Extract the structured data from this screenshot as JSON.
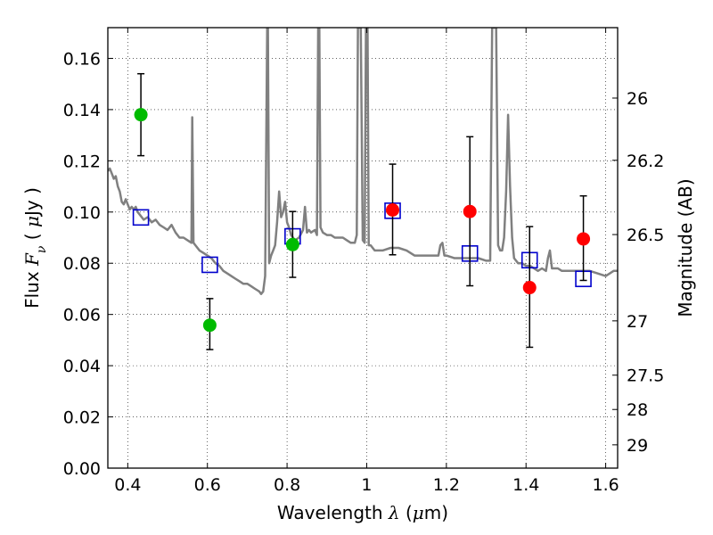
{
  "chart_data": {
    "type": "scatter",
    "title": "",
    "xlabel_parts": [
      "Wavelength  ",
      "λ",
      " (",
      "μ",
      "m)"
    ],
    "ylabel_parts": [
      "Flux  ",
      "F",
      "ν",
      "  ( ",
      "μ",
      "Jy )"
    ],
    "y2label": "Magnitude (AB)",
    "xlim": [
      0.35,
      1.63
    ],
    "ylim": [
      0.0,
      0.172
    ],
    "grid": true,
    "x_ticks": [
      0.4,
      0.6,
      0.8,
      1.0,
      1.2,
      1.4,
      1.6
    ],
    "x_tick_labels": [
      "0.4",
      "0.6",
      "0.8",
      "1",
      "1.2",
      "1.4",
      "1.6"
    ],
    "y_ticks": [
      0.0,
      0.02,
      0.04,
      0.06,
      0.08,
      0.1,
      0.12,
      0.14,
      0.16
    ],
    "y_tick_labels": [
      "0.00",
      "0.02",
      "0.04",
      "0.06",
      "0.08",
      "0.10",
      "0.12",
      "0.14",
      "0.16"
    ],
    "y2_ticks": [
      {
        "label": "26",
        "flux": 0.1445
      },
      {
        "label": "26.2",
        "flux": 0.1202
      },
      {
        "label": "26.5",
        "flux": 0.0912
      },
      {
        "label": "27",
        "flux": 0.0575
      },
      {
        "label": "27.5",
        "flux": 0.0363
      },
      {
        "label": "28",
        "flux": 0.0229
      },
      {
        "label": "29",
        "flux": 0.0091
      }
    ],
    "colors": {
      "green": "#00bb00",
      "red": "#ff0000",
      "model_box": "#0000cc",
      "sed_line": "#808080",
      "error_bar": "#000000",
      "grid": "#b0b0b0"
    },
    "series": [
      {
        "kind": "sed_model_curve",
        "points": [
          [
            0.35,
            0.116
          ],
          [
            0.355,
            0.117
          ],
          [
            0.36,
            0.115
          ],
          [
            0.365,
            0.113
          ],
          [
            0.37,
            0.114
          ],
          [
            0.375,
            0.11
          ],
          [
            0.38,
            0.108
          ],
          [
            0.385,
            0.104
          ],
          [
            0.39,
            0.103
          ],
          [
            0.395,
            0.105
          ],
          [
            0.4,
            0.103
          ],
          [
            0.405,
            0.101
          ],
          [
            0.41,
            0.102
          ],
          [
            0.415,
            0.101
          ],
          [
            0.42,
            0.102
          ],
          [
            0.425,
            0.1
          ],
          [
            0.43,
            0.099
          ],
          [
            0.44,
            0.097
          ],
          [
            0.45,
            0.098
          ],
          [
            0.46,
            0.096
          ],
          [
            0.47,
            0.097
          ],
          [
            0.48,
            0.095
          ],
          [
            0.49,
            0.094
          ],
          [
            0.5,
            0.093
          ],
          [
            0.51,
            0.095
          ],
          [
            0.52,
            0.092
          ],
          [
            0.53,
            0.09
          ],
          [
            0.54,
            0.09
          ],
          [
            0.55,
            0.089
          ],
          [
            0.56,
            0.088
          ],
          [
            0.562,
            0.137
          ],
          [
            0.565,
            0.088
          ],
          [
            0.57,
            0.087
          ],
          [
            0.58,
            0.085
          ],
          [
            0.59,
            0.084
          ],
          [
            0.6,
            0.083
          ],
          [
            0.61,
            0.082
          ],
          [
            0.62,
            0.08
          ],
          [
            0.63,
            0.079
          ],
          [
            0.64,
            0.077
          ],
          [
            0.65,
            0.076
          ],
          [
            0.66,
            0.075
          ],
          [
            0.67,
            0.074
          ],
          [
            0.68,
            0.073
          ],
          [
            0.69,
            0.072
          ],
          [
            0.7,
            0.072
          ],
          [
            0.71,
            0.071
          ],
          [
            0.72,
            0.07
          ],
          [
            0.73,
            0.069
          ],
          [
            0.735,
            0.068
          ],
          [
            0.74,
            0.069
          ],
          [
            0.745,
            0.075
          ],
          [
            0.75,
            0.172
          ],
          [
            0.752,
            0.172
          ],
          [
            0.755,
            0.08
          ],
          [
            0.76,
            0.083
          ],
          [
            0.765,
            0.085
          ],
          [
            0.77,
            0.087
          ],
          [
            0.775,
            0.096
          ],
          [
            0.78,
            0.108
          ],
          [
            0.785,
            0.098
          ],
          [
            0.79,
            0.1
          ],
          [
            0.795,
            0.104
          ],
          [
            0.8,
            0.096
          ],
          [
            0.805,
            0.094
          ],
          [
            0.81,
            0.091
          ],
          [
            0.82,
            0.089
          ],
          [
            0.83,
            0.09
          ],
          [
            0.84,
            0.093
          ],
          [
            0.845,
            0.102
          ],
          [
            0.85,
            0.092
          ],
          [
            0.855,
            0.093
          ],
          [
            0.86,
            0.092
          ],
          [
            0.87,
            0.093
          ],
          [
            0.875,
            0.091
          ],
          [
            0.878,
            0.172
          ],
          [
            0.881,
            0.172
          ],
          [
            0.884,
            0.094
          ],
          [
            0.89,
            0.092
          ],
          [
            0.9,
            0.091
          ],
          [
            0.91,
            0.091
          ],
          [
            0.92,
            0.09
          ],
          [
            0.93,
            0.09
          ],
          [
            0.94,
            0.09
          ],
          [
            0.95,
            0.089
          ],
          [
            0.96,
            0.088
          ],
          [
            0.97,
            0.088
          ],
          [
            0.975,
            0.091
          ],
          [
            0.978,
            0.172
          ],
          [
            0.985,
            0.172
          ],
          [
            0.99,
            0.089
          ],
          [
            0.995,
            0.088
          ],
          [
            0.998,
            0.172
          ],
          [
            1.002,
            0.172
          ],
          [
            1.005,
            0.087
          ],
          [
            1.01,
            0.087
          ],
          [
            1.02,
            0.085
          ],
          [
            1.04,
            0.085
          ],
          [
            1.06,
            0.086
          ],
          [
            1.08,
            0.086
          ],
          [
            1.1,
            0.085
          ],
          [
            1.12,
            0.083
          ],
          [
            1.14,
            0.083
          ],
          [
            1.16,
            0.083
          ],
          [
            1.18,
            0.083
          ],
          [
            1.185,
            0.087
          ],
          [
            1.19,
            0.088
          ],
          [
            1.195,
            0.083
          ],
          [
            1.2,
            0.083
          ],
          [
            1.22,
            0.082
          ],
          [
            1.24,
            0.082
          ],
          [
            1.26,
            0.082
          ],
          [
            1.28,
            0.082
          ],
          [
            1.3,
            0.081
          ],
          [
            1.31,
            0.081
          ],
          [
            1.315,
            0.172
          ],
          [
            1.325,
            0.172
          ],
          [
            1.33,
            0.087
          ],
          [
            1.335,
            0.085
          ],
          [
            1.34,
            0.085
          ],
          [
            1.345,
            0.09
          ],
          [
            1.35,
            0.108
          ],
          [
            1.355,
            0.138
          ],
          [
            1.36,
            0.11
          ],
          [
            1.365,
            0.09
          ],
          [
            1.37,
            0.082
          ],
          [
            1.38,
            0.08
          ],
          [
            1.39,
            0.08
          ],
          [
            1.4,
            0.079
          ],
          [
            1.41,
            0.079
          ],
          [
            1.42,
            0.078
          ],
          [
            1.43,
            0.077
          ],
          [
            1.44,
            0.078
          ],
          [
            1.45,
            0.077
          ],
          [
            1.455,
            0.082
          ],
          [
            1.46,
            0.085
          ],
          [
            1.465,
            0.078
          ],
          [
            1.47,
            0.078
          ],
          [
            1.48,
            0.078
          ],
          [
            1.49,
            0.077
          ],
          [
            1.5,
            0.077
          ],
          [
            1.52,
            0.077
          ],
          [
            1.54,
            0.077
          ],
          [
            1.56,
            0.077
          ],
          [
            1.58,
            0.076
          ],
          [
            1.6,
            0.075
          ],
          [
            1.61,
            0.076
          ],
          [
            1.62,
            0.077
          ],
          [
            1.63,
            0.077
          ]
        ]
      },
      {
        "kind": "observed_flux_green",
        "points": [
          {
            "x": 0.433,
            "y": 0.138,
            "yerr_low": 0.122,
            "yerr_high": 0.154
          },
          {
            "x": 0.606,
            "y": 0.0558,
            "yerr_low": 0.0463,
            "yerr_high": 0.0662
          },
          {
            "x": 0.814,
            "y": 0.0873,
            "yerr_low": 0.0745,
            "yerr_high": 0.1002
          }
        ]
      },
      {
        "kind": "observed_flux_red",
        "points": [
          {
            "x": 1.065,
            "y": 0.1008,
            "yerr_low": 0.0833,
            "yerr_high": 0.1187
          },
          {
            "x": 1.259,
            "y": 0.1002,
            "yerr_low": 0.0712,
            "yerr_high": 0.1294
          },
          {
            "x": 1.409,
            "y": 0.0705,
            "yerr_low": 0.0472,
            "yerr_high": 0.0943
          },
          {
            "x": 1.544,
            "y": 0.0895,
            "yerr_low": 0.0733,
            "yerr_high": 0.1063
          }
        ]
      },
      {
        "kind": "model_band_flux",
        "points": [
          {
            "x": 0.433,
            "y": 0.0979
          },
          {
            "x": 0.606,
            "y": 0.0794
          },
          {
            "x": 0.814,
            "y": 0.0905
          },
          {
            "x": 1.065,
            "y": 0.1005
          },
          {
            "x": 1.259,
            "y": 0.0838
          },
          {
            "x": 1.409,
            "y": 0.0812
          },
          {
            "x": 1.544,
            "y": 0.0739
          }
        ]
      }
    ]
  }
}
